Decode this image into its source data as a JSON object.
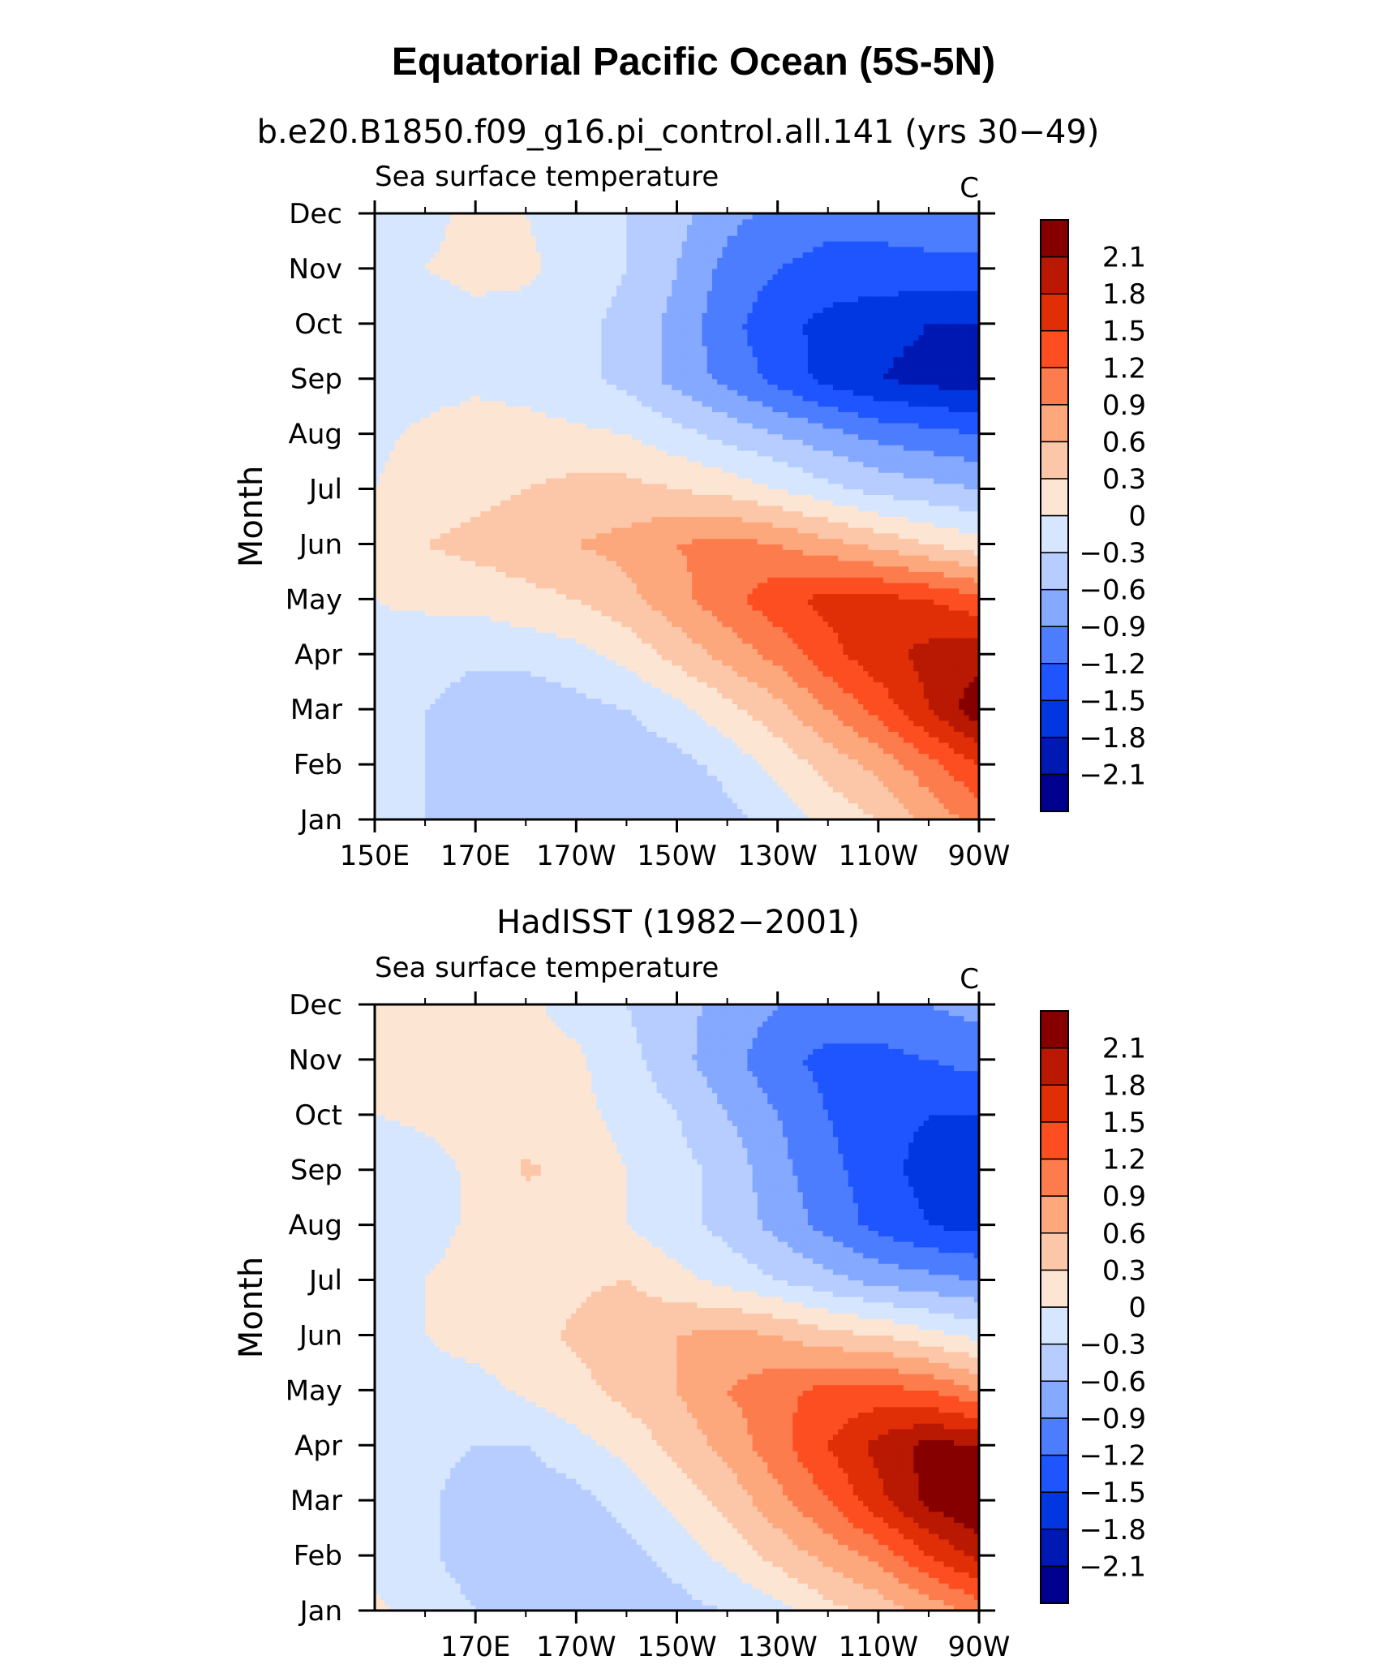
{
  "figure": {
    "title": "Equatorial Pacific Ocean (5S-5N)"
  },
  "colorbar": {
    "levels": [
      -2.1,
      -1.8,
      -1.5,
      -1.2,
      -0.9,
      -0.6,
      -0.3,
      0,
      0.3,
      0.6,
      0.9,
      1.2,
      1.5,
      1.8,
      2.1
    ],
    "labels": [
      "−2.1",
      "−1.8",
      "−1.5",
      "−1.2",
      "−0.9",
      "−0.6",
      "−0.3",
      "0",
      "0.3",
      "0.6",
      "0.9",
      "1.2",
      "1.5",
      "1.8",
      "2.1"
    ],
    "colors": [
      "#00008f",
      "#0019b3",
      "#0037e0",
      "#1f55ff",
      "#4d7dff",
      "#85a9ff",
      "#b7cdff",
      "#d6e6ff",
      "#fde5d3",
      "#fcc6a8",
      "#fca77c",
      "#fd7c4d",
      "#fc4e20",
      "#e02e07",
      "#b91902",
      "#870000"
    ]
  },
  "chart_data": [
    {
      "type": "heatmap",
      "title": "b.e20.B1850.f09_g16.pi_control.all.141 (yrs 30−49)",
      "left_label": "Sea surface temperature",
      "right_label": "C",
      "ylabel": "Month",
      "xticks": [
        "150E",
        "170E",
        "170W",
        "150W",
        "130W",
        "110W",
        "90W"
      ],
      "yticks": [
        "Jan",
        "Feb",
        "Mar",
        "Apr",
        "May",
        "Jun",
        "Jul",
        "Aug",
        "Sep",
        "Oct",
        "Nov",
        "Dec"
      ],
      "xlim": [
        "150E",
        "90W"
      ],
      "ylim": [
        "Jan",
        "Dec"
      ],
      "x_lon": [
        150,
        160,
        170,
        180,
        190,
        200,
        210,
        220,
        230,
        240,
        250,
        260,
        270
      ],
      "values": [
        [
          -0.2,
          -0.3,
          -0.5,
          -0.5,
          -0.6,
          -0.6,
          -0.6,
          -0.4,
          -0.2,
          0.1,
          0.3,
          0.7,
          1.0
        ],
        [
          -0.15,
          -0.3,
          -0.5,
          -0.6,
          -0.6,
          -0.5,
          -0.4,
          -0.2,
          0.1,
          0.4,
          0.7,
          1.1,
          1.5
        ],
        [
          -0.1,
          -0.3,
          -0.45,
          -0.5,
          -0.4,
          -0.3,
          -0.1,
          0.2,
          0.5,
          0.9,
          1.3,
          1.8,
          2.3
        ],
        [
          -0.05,
          -0.15,
          -0.25,
          -0.2,
          -0.1,
          0.1,
          0.4,
          0.7,
          1.0,
          1.4,
          1.7,
          1.9,
          2.0
        ],
        [
          0.0,
          0.05,
          0.1,
          0.2,
          0.3,
          0.5,
          0.8,
          1.1,
          1.4,
          1.6,
          1.6,
          1.5,
          1.3
        ],
        [
          0.2,
          0.3,
          0.4,
          0.5,
          0.6,
          0.7,
          0.9,
          1.0,
          0.9,
          0.7,
          0.5,
          0.3,
          0.1
        ],
        [
          0.0,
          0.1,
          0.2,
          0.3,
          0.4,
          0.4,
          0.3,
          0.2,
          0.0,
          -0.2,
          -0.4,
          -0.5,
          -0.6
        ],
        [
          -0.05,
          0.05,
          0.1,
          0.1,
          0.05,
          0.0,
          -0.2,
          -0.4,
          -0.6,
          -0.8,
          -1.0,
          -1.1,
          -1.2
        ],
        [
          -0.15,
          -0.1,
          -0.05,
          -0.1,
          -0.2,
          -0.4,
          -0.7,
          -1.0,
          -1.3,
          -1.6,
          -1.8,
          -1.9,
          -2.0
        ],
        [
          -0.1,
          -0.1,
          -0.05,
          -0.1,
          -0.2,
          -0.4,
          -0.7,
          -1.1,
          -1.4,
          -1.6,
          -1.7,
          -1.8,
          -1.8
        ],
        [
          -0.05,
          0.0,
          0.05,
          0.05,
          -0.1,
          -0.3,
          -0.6,
          -1.0,
          -1.2,
          -1.3,
          -1.3,
          -1.3,
          -1.3
        ],
        [
          -0.1,
          -0.05,
          0.05,
          0.0,
          -0.1,
          -0.3,
          -0.5,
          -0.8,
          -1.0,
          -1.1,
          -1.1,
          -1.0,
          -0.9
        ]
      ]
    },
    {
      "type": "heatmap",
      "title": "HadISST (1982−2001)",
      "left_label": "Sea surface temperature",
      "right_label": "C",
      "ylabel": "Month",
      "xticks": [
        "170E",
        "170W",
        "150W",
        "130W",
        "110W",
        "90W"
      ],
      "yticks": [
        "Jan",
        "Feb",
        "Mar",
        "Apr",
        "May",
        "Jun",
        "Jul",
        "Aug",
        "Sep",
        "Oct",
        "Nov",
        "Dec"
      ],
      "xlim": [
        "150E",
        "90W"
      ],
      "ylim": [
        "Jan",
        "Dec"
      ],
      "x_lon": [
        150,
        160,
        170,
        180,
        190,
        200,
        210,
        220,
        230,
        240,
        250,
        260,
        270
      ],
      "values": [
        [
          0.05,
          -0.1,
          -0.3,
          -0.4,
          -0.5,
          -0.5,
          -0.4,
          -0.3,
          -0.1,
          0.2,
          0.4,
          0.7,
          1.0
        ],
        [
          -0.1,
          -0.25,
          -0.45,
          -0.55,
          -0.5,
          -0.4,
          -0.2,
          0.1,
          0.4,
          0.7,
          1.0,
          1.5,
          1.9
        ],
        [
          -0.15,
          -0.25,
          -0.45,
          -0.5,
          -0.4,
          -0.2,
          0.1,
          0.4,
          0.8,
          1.2,
          1.7,
          2.2,
          2.4
        ],
        [
          -0.1,
          -0.2,
          -0.3,
          -0.3,
          -0.1,
          0.1,
          0.4,
          0.7,
          1.1,
          1.5,
          1.9,
          2.2,
          2.1
        ],
        [
          -0.05,
          -0.1,
          -0.1,
          0.05,
          0.2,
          0.4,
          0.6,
          0.9,
          1.1,
          1.3,
          1.3,
          1.2,
          0.9
        ],
        [
          -0.1,
          0.0,
          0.1,
          0.2,
          0.35,
          0.5,
          0.6,
          0.7,
          0.6,
          0.4,
          0.3,
          0.1,
          -0.1
        ],
        [
          -0.1,
          0.0,
          0.1,
          0.15,
          0.25,
          0.3,
          0.1,
          -0.1,
          -0.3,
          -0.5,
          -0.7,
          -0.8,
          -0.9
        ],
        [
          -0.2,
          -0.1,
          0.05,
          0.1,
          0.1,
          0.0,
          -0.2,
          -0.4,
          -0.7,
          -1.0,
          -1.3,
          -1.5,
          -1.6
        ],
        [
          -0.2,
          -0.1,
          0.05,
          0.35,
          0.2,
          0.0,
          -0.2,
          -0.4,
          -0.8,
          -1.1,
          -1.4,
          -1.6,
          -1.7
        ],
        [
          0.0,
          0.05,
          0.1,
          0.15,
          0.1,
          -0.1,
          -0.3,
          -0.6,
          -0.9,
          -1.2,
          -1.4,
          -1.5,
          -1.5
        ],
        [
          0.05,
          0.1,
          0.1,
          0.1,
          0.05,
          -0.2,
          -0.5,
          -0.8,
          -1.1,
          -1.3,
          -1.3,
          -1.2,
          -1.1
        ],
        [
          0.05,
          0.05,
          0.1,
          0.05,
          -0.1,
          -0.3,
          -0.5,
          -0.7,
          -0.9,
          -1.0,
          -1.0,
          -0.9,
          -0.8
        ]
      ]
    }
  ]
}
